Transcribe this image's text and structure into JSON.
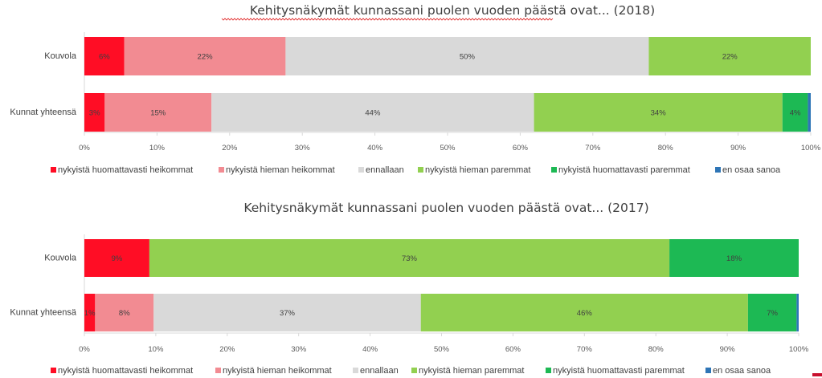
{
  "chart_data": [
    {
      "type": "bar",
      "orientation": "horizontal",
      "stacked": "percent",
      "title": "Kehitysnäkymät kunnassani puolen vuoden päästä ovat... (2018)",
      "categories": [
        "Kouvola",
        "Kunnat yhteensä"
      ],
      "x_ticks": [
        "0%",
        "10%",
        "20%",
        "30%",
        "40%",
        "50%",
        "60%",
        "70%",
        "80%",
        "90%",
        "100%"
      ],
      "xlim": [
        0,
        100
      ],
      "legend_position": "bottom",
      "grid": false,
      "series": [
        {
          "name": "nykyistä huomattavasti heikommat",
          "color": "#ff0d25",
          "values": [
            5.5,
            2.8
          ],
          "labels": [
            "6%",
            "3%"
          ]
        },
        {
          "name": "nykyistä hieman heikommat",
          "color": "#f28b92",
          "values": [
            22.2,
            14.7
          ],
          "labels": [
            "22%",
            "15%"
          ]
        },
        {
          "name": "ennallaan",
          "color": "#d9d9d9",
          "values": [
            50,
            44.4
          ],
          "labels": [
            "50%",
            "44%"
          ]
        },
        {
          "name": "nykyistä hieman paremmat",
          "color": "#92d050",
          "values": [
            22.3,
            34.2
          ],
          "labels": [
            "22%",
            "34%"
          ]
        },
        {
          "name": "nykyistä huomattavasti paremmat",
          "color": "#1db954",
          "values": [
            0,
            3.5
          ],
          "labels": [
            "",
            "4%"
          ]
        },
        {
          "name": "en osaa sanoa",
          "color": "#2e75b6",
          "values": [
            0,
            0.4
          ],
          "labels": [
            "",
            ""
          ]
        }
      ]
    },
    {
      "type": "bar",
      "orientation": "horizontal",
      "stacked": "percent",
      "title": "Kehitysnäkymät kunnassani puolen vuoden päästä ovat... (2017)",
      "categories": [
        "Kouvola",
        "Kunnat yhteensä"
      ],
      "x_ticks": [
        "0%",
        "10%",
        "20%",
        "30%",
        "40%",
        "50%",
        "60%",
        "70%",
        "80%",
        "90%",
        "100%"
      ],
      "xlim": [
        0,
        100
      ],
      "legend_position": "bottom",
      "grid": false,
      "series": [
        {
          "name": "nykyistä huomattavasti heikommat",
          "color": "#ff0d25",
          "values": [
            9.1,
            1.5
          ],
          "labels": [
            "9%",
            "1%"
          ]
        },
        {
          "name": "nykyistä hieman heikommat",
          "color": "#f28b92",
          "values": [
            0,
            8.2
          ],
          "labels": [
            "",
            "8%"
          ]
        },
        {
          "name": "ennallaan",
          "color": "#d9d9d9",
          "values": [
            0,
            37.4
          ],
          "labels": [
            "",
            "37%"
          ]
        },
        {
          "name": "nykyistä hieman paremmat",
          "color": "#92d050",
          "values": [
            72.8,
            45.8
          ],
          "labels": [
            "73%",
            "46%"
          ]
        },
        {
          "name": "nykyistä huomattavasti paremmat",
          "color": "#1db954",
          "values": [
            18.1,
            6.8
          ],
          "labels": [
            "18%",
            "7%"
          ]
        },
        {
          "name": "en osaa sanoa",
          "color": "#2e75b6",
          "values": [
            0,
            0.3
          ],
          "labels": [
            "",
            ""
          ]
        }
      ]
    }
  ]
}
